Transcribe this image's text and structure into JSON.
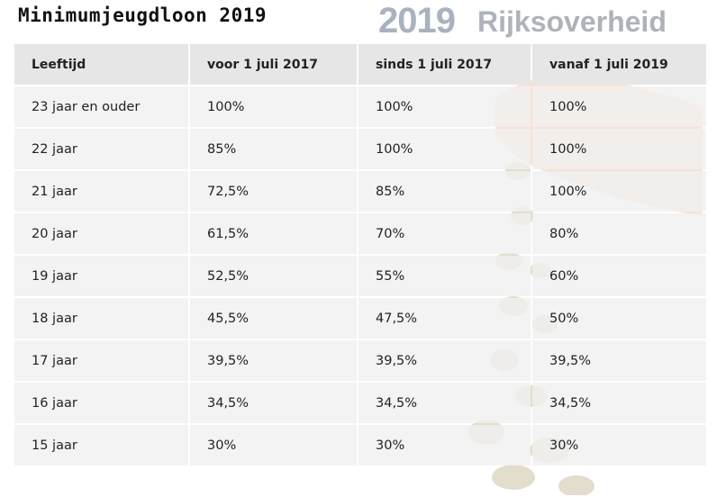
{
  "title": "Minimumjeugdloon 2019",
  "watermark": {
    "year": "2019",
    "brand": "Rijksoverheid"
  },
  "table": {
    "headers": [
      "Leeftijd",
      "voor 1 juli 2017",
      "sinds 1 juli 2017",
      "vanaf 1 juli 2019"
    ],
    "rows": [
      [
        "23 jaar en ouder",
        "100%",
        "100%",
        "100%"
      ],
      [
        "22 jaar",
        "85%",
        "100%",
        "100%"
      ],
      [
        "21 jaar",
        "72,5%",
        "85%",
        "100%"
      ],
      [
        "20 jaar",
        "61,5%",
        "70%",
        "80%"
      ],
      [
        "19 jaar",
        "52,5%",
        "55%",
        "60%"
      ],
      [
        "18 jaar",
        "45,5%",
        "47,5%",
        "50%"
      ],
      [
        "17 jaar",
        "39,5%",
        "39,5%",
        "39,5%"
      ],
      [
        "16 jaar",
        "34,5%",
        "34,5%",
        "34,5%"
      ],
      [
        "15 jaar",
        "30%",
        "30%",
        "30%"
      ]
    ]
  }
}
